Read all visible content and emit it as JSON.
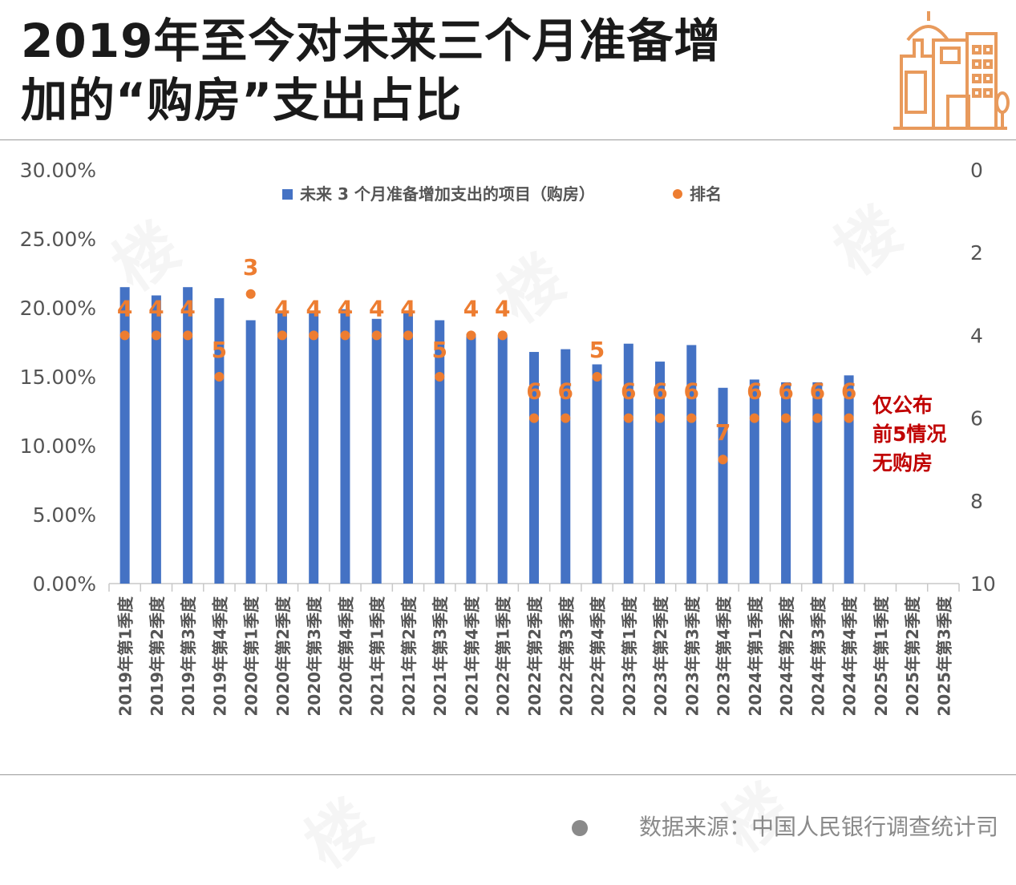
{
  "title": {
    "line1": "2019年至今对未来三个月准备增",
    "line2": "加的“购房”支出占比"
  },
  "source_note": "数据来源：中国人民银行调查统计司",
  "colors": {
    "bar": "#4472c4",
    "rank": "#ed7d31",
    "annotation": "#c00000",
    "axis_text": "#555555",
    "logo": "#e89a5c"
  },
  "chart_data": {
    "type": "bar",
    "legend": {
      "bar_label": "未来 3 个月准备增加支出的项目（购房）",
      "rank_label": "排名",
      "position": "top-center"
    },
    "categories": [
      "2019年第1季度",
      "2019年第2季度",
      "2019年第3季度",
      "2019年第4季度",
      "2020年第1季度",
      "2020年第2季度",
      "2020年第3季度",
      "2020年第4季度",
      "2021年第1季度",
      "2021年第2季度",
      "2021年第3季度",
      "2021年第4季度",
      "2022年第1季度",
      "2022年第2季度",
      "2022年第3季度",
      "2022年第4季度",
      "2023年第1季度",
      "2023年第2季度",
      "2023年第3季度",
      "2023年第4季度",
      "2024年第1季度",
      "2024年第2季度",
      "2024年第3季度",
      "2024年第4季度",
      "2025年第1季度",
      "2025年第2季度",
      "2025年第3季度"
    ],
    "series": [
      {
        "name": "未来 3 个月准备增加支出的项目（购房）",
        "axis": "left",
        "values": [
          21.5,
          20.9,
          21.5,
          20.7,
          19.1,
          19.8,
          19.8,
          19.9,
          19.2,
          19.8,
          19.1,
          18.1,
          18.0,
          16.8,
          17.0,
          15.9,
          17.4,
          16.1,
          17.3,
          14.2,
          14.8,
          14.6,
          14.6,
          15.1,
          null,
          null,
          null
        ]
      },
      {
        "name": "排名",
        "axis": "right",
        "values": [
          4,
          4,
          4,
          5,
          3,
          4,
          4,
          4,
          4,
          4,
          5,
          4,
          4,
          6,
          6,
          5,
          6,
          6,
          6,
          7,
          6,
          6,
          6,
          6,
          null,
          null,
          null
        ]
      }
    ],
    "y_left": {
      "range": [
        0,
        30
      ],
      "ticks": [
        "0.00%",
        "5.00%",
        "10.00%",
        "15.00%",
        "20.00%",
        "25.00%",
        "30.00%"
      ]
    },
    "y_right": {
      "range": [
        0,
        10
      ],
      "reversed": true,
      "ticks": [
        "0",
        "2",
        "4",
        "6",
        "8",
        "10"
      ]
    },
    "annotation": [
      "仅公布",
      "前5情况",
      "无购房"
    ]
  }
}
